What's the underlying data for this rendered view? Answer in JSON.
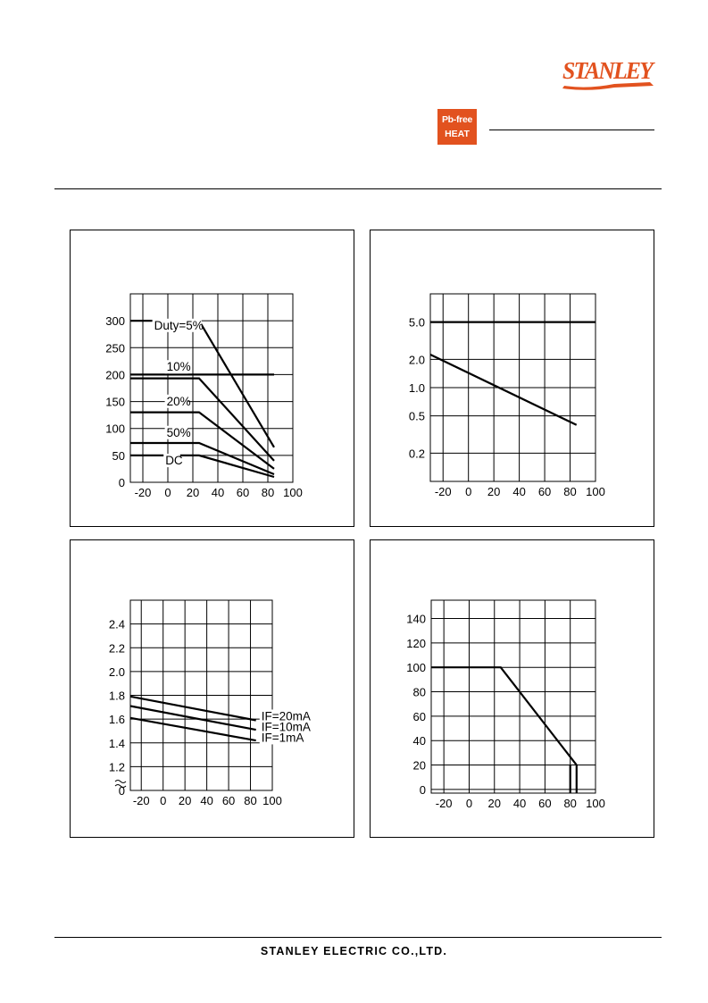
{
  "header": {
    "brand": "STANLEY",
    "badge": {
      "line1": "Pb-free",
      "line2": "HEAT",
      "color": "#e2521f"
    },
    "brand_color": "#e2521f"
  },
  "footer": {
    "company": "STANLEY ELECTRIC CO.,LTD."
  },
  "chart_data": [
    {
      "type": "line",
      "xlim": [
        -30,
        100
      ],
      "ylim": [
        0,
        350
      ],
      "x_ticks": [
        -20,
        0,
        20,
        40,
        60,
        80,
        100
      ],
      "y_ticks": [
        0,
        50,
        100,
        150,
        200,
        250,
        300
      ],
      "y_tick_labels": [
        "0",
        "50",
        "100",
        "150",
        "200",
        "250",
        "300"
      ],
      "grid": true,
      "series": [
        {
          "name": "Duty=5%",
          "points": [
            [
              -30,
              300
            ],
            [
              25,
              300
            ],
            [
              85,
              65
            ]
          ]
        },
        {
          "name": "10%",
          "points": [
            [
              -30,
              200
            ],
            [
              85,
              200
            ]
          ]
        },
        {
          "name": "",
          "points": [
            [
              -30,
              193
            ],
            [
              25,
              193
            ],
            [
              85,
              40
            ]
          ]
        },
        {
          "name": "20%",
          "points": [
            [
              -30,
              130
            ],
            [
              25,
              130
            ],
            [
              85,
              25
            ]
          ]
        },
        {
          "name": "50%",
          "points": [
            [
              -30,
              73
            ],
            [
              25,
              73
            ],
            [
              85,
              15
            ]
          ]
        },
        {
          "name": "DC",
          "points": [
            [
              -30,
              50
            ],
            [
              25,
              50
            ],
            [
              85,
              10
            ]
          ]
        }
      ],
      "annotations": [
        {
          "text": "Duty=5%",
          "x": -11,
          "y": 284
        },
        {
          "text": "10%",
          "x": -1,
          "y": 207
        },
        {
          "text": "20%",
          "x": -1,
          "y": 143
        },
        {
          "text": "50%",
          "x": -1,
          "y": 85
        },
        {
          "text": "DC",
          "x": -2,
          "y": 33
        }
      ]
    },
    {
      "type": "line",
      "yscale": "log",
      "xlim": [
        -30,
        100
      ],
      "ylim": [
        0.1,
        10
      ],
      "x_ticks": [
        -20,
        0,
        20,
        40,
        60,
        80,
        100
      ],
      "y_ticks": [
        0.2,
        0.5,
        1.0,
        2.0,
        5.0
      ],
      "y_tick_labels": [
        "0.2",
        "0.5",
        "1.0",
        "2.0",
        "5.0"
      ],
      "grid": true,
      "series": [
        {
          "name": "",
          "points": [
            [
              -30,
              5.0
            ],
            [
              100,
              5.0
            ]
          ]
        },
        {
          "name": "",
          "points": [
            [
              -30,
              2.25
            ],
            [
              85,
              0.4
            ]
          ]
        }
      ],
      "annotations": []
    },
    {
      "type": "line",
      "xlim": [
        -30,
        100
      ],
      "ylim": [
        1.0,
        2.6
      ],
      "axis_break": true,
      "x_ticks": [
        -20,
        0,
        20,
        40,
        60,
        80,
        100
      ],
      "y_ticks": [
        1.0,
        1.2,
        1.4,
        1.6,
        1.8,
        2.0,
        2.2,
        2.4
      ],
      "y_tick_labels": [
        "0",
        "1.2",
        "1.4",
        "1.6",
        "1.8",
        "2.0",
        "2.2",
        "2.4"
      ],
      "grid": true,
      "series": [
        {
          "name": "IF=20mA",
          "points": [
            [
              -30,
              1.79
            ],
            [
              85,
              1.59
            ]
          ]
        },
        {
          "name": "IF=10mA",
          "points": [
            [
              -30,
              1.71
            ],
            [
              85,
              1.51
            ]
          ]
        },
        {
          "name": "IF=1mA",
          "points": [
            [
              -30,
              1.61
            ],
            [
              85,
              1.42
            ]
          ]
        }
      ],
      "annotations": [
        {
          "text": "IF=20mA",
          "x": 90,
          "y": 1.59
        },
        {
          "text": "IF=10mA",
          "x": 90,
          "y": 1.5
        },
        {
          "text": "IF=1mA",
          "x": 90,
          "y": 1.41
        }
      ]
    },
    {
      "type": "line",
      "xlim": [
        -30,
        100
      ],
      "ylim": [
        -3,
        155
      ],
      "x_ticks": [
        -20,
        0,
        20,
        40,
        60,
        80,
        100
      ],
      "y_ticks": [
        0,
        20,
        40,
        60,
        80,
        100,
        120,
        140
      ],
      "y_tick_labels": [
        "0",
        "20",
        "40",
        "60",
        "80",
        "100",
        "120",
        "140"
      ],
      "grid": true,
      "series": [
        {
          "name": "",
          "points": [
            [
              -30,
              100
            ],
            [
              25,
              100
            ],
            [
              85,
              20
            ]
          ]
        },
        {
          "name": "",
          "points": [
            [
              85,
              20
            ],
            [
              85,
              -3
            ]
          ]
        },
        {
          "name": "",
          "points": [
            [
              80,
              -3
            ],
            [
              80,
              20
            ]
          ]
        }
      ],
      "annotations": []
    }
  ]
}
